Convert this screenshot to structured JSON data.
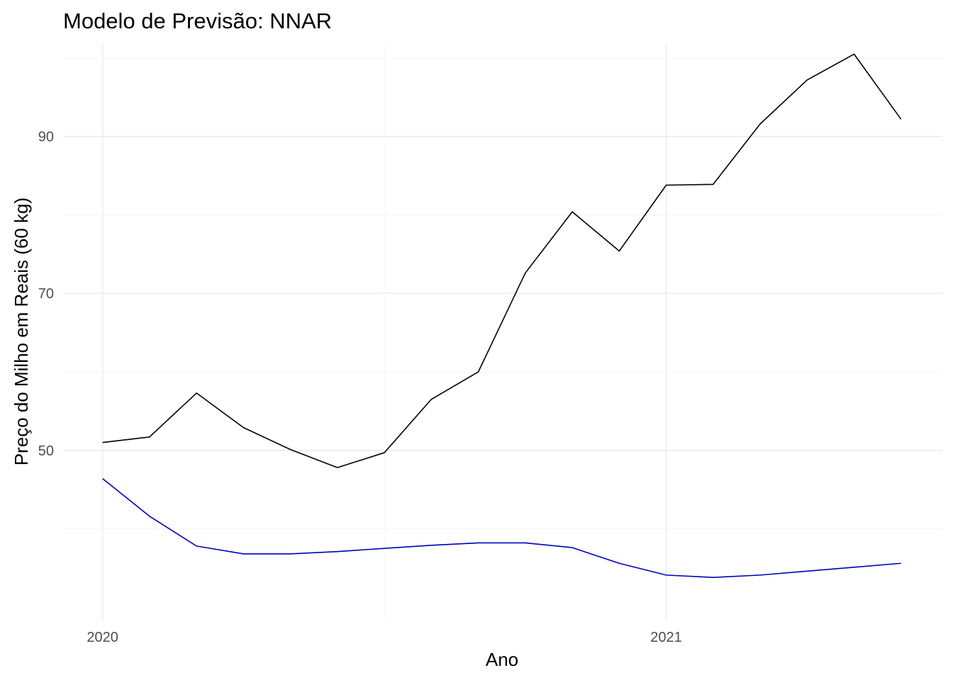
{
  "chart_data": {
    "type": "line",
    "title": "Modelo de Previsão: NNAR",
    "xlabel": "Ano",
    "ylabel": "Preço do Milho em Reais (60 kg)",
    "x_tick_labels": [
      "2020",
      "2021"
    ],
    "y_tick_labels": [
      "50",
      "70",
      "90"
    ],
    "xlim": [
      2019.93,
      2021.49
    ],
    "ylim": [
      28.4,
      101.8
    ],
    "grid": true,
    "x": [
      2020.0,
      2020.0833,
      2020.1667,
      2020.25,
      2020.3333,
      2020.4167,
      2020.5,
      2020.5833,
      2020.6667,
      2020.75,
      2020.8333,
      2020.9167,
      2021.0,
      2021.0833,
      2021.1667,
      2021.25,
      2021.3333,
      2021.4167
    ],
    "series": [
      {
        "color": "#000000",
        "values": [
          51.0,
          51.7,
          57.3,
          52.9,
          50.1,
          47.8,
          49.7,
          56.5,
          60.0,
          72.6,
          80.4,
          75.4,
          83.8,
          83.9,
          91.6,
          97.2,
          100.5,
          92.2
        ]
      },
      {
        "color": "#0000bb",
        "values": [
          46.4,
          41.6,
          37.8,
          36.8,
          36.8,
          37.1,
          37.5,
          37.9,
          38.2,
          38.2,
          37.6,
          35.6,
          34.1,
          33.8,
          34.1,
          34.6,
          35.1,
          35.6
        ]
      }
    ]
  }
}
